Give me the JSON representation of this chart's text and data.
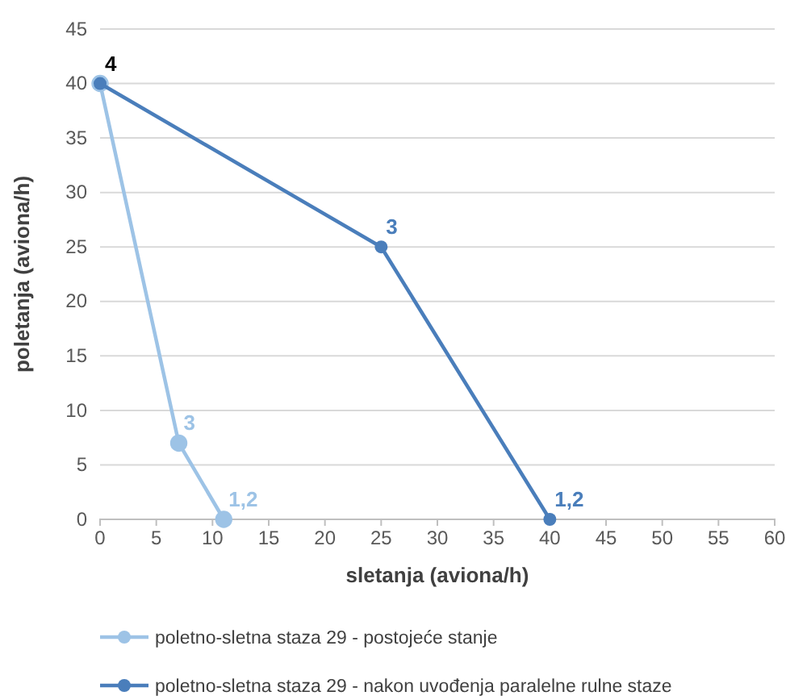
{
  "chart_data": {
    "type": "line",
    "xlabel": "sletanja (aviona/h)",
    "ylabel": "poletanja (aviona/h)",
    "series": [
      {
        "name": "poletno-sletna staza 29 - postojeće stanje",
        "color": "#9dc3e6",
        "x": [
          0,
          7,
          11
        ],
        "values": [
          40,
          7,
          0
        ]
      },
      {
        "name": "poletno-sletna staza 29 - nakon uvođenja paralelne rulne staze",
        "color": "#4a7ebb",
        "x": [
          0,
          25,
          40
        ],
        "values": [
          40,
          25,
          0
        ]
      }
    ],
    "annotations": [
      {
        "text": "4",
        "x": 0,
        "y": 40
      },
      {
        "text": "3",
        "x": 7,
        "y": 7
      },
      {
        "text": "1,2",
        "x": 11,
        "y": 0
      },
      {
        "text": "3",
        "x": 25,
        "y": 25
      },
      {
        "text": "1,2",
        "x": 40,
        "y": 0
      }
    ],
    "xlim": [
      0,
      60
    ],
    "xticks": [
      0,
      5,
      10,
      15,
      20,
      25,
      30,
      35,
      40,
      45,
      50,
      55,
      60
    ],
    "ylim": [
      0,
      45
    ],
    "yticks": [
      0,
      5,
      10,
      15,
      20,
      25,
      30,
      35,
      40,
      45
    ],
    "grid": "y",
    "legend": "bottom",
    "marker": "circle",
    "line_style": "solid"
  }
}
